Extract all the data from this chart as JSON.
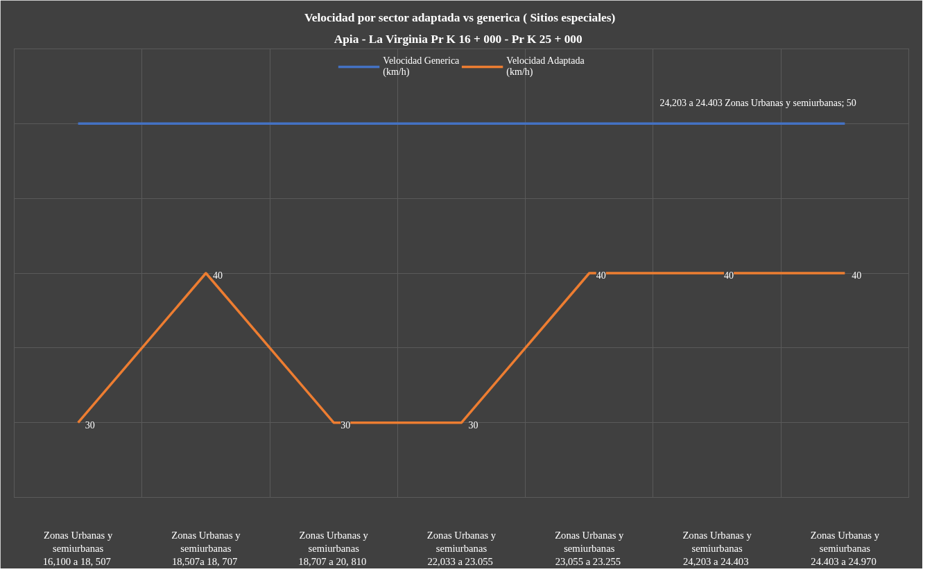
{
  "chart_data": {
    "type": "line",
    "title": "Velocidad por sector adaptada  vs generica ( Sitios especiales)",
    "subtitle": "Apia - La Virginia   Pr K 16 + 000 - Pr K 25 + 000",
    "categories": [
      "Zonas Urbanas y\nsemiurbanas\n16,100 a  18, 507",
      "Zonas Urbanas y\nsemiurbanas\n18,507a  18, 707",
      "Zonas Urbanas y\nsemiurbanas\n18,707 a  20, 810",
      "Zonas Urbanas y\nsemiurbanas\n22,033 a  23.055",
      "Zonas Urbanas y\nsemiurbanas\n23,055 a  23.255",
      "Zonas Urbanas y\nsemiurbanas\n24,203 a  24.403",
      "Zonas Urbanas y\nsemiurbanas\n24.403 a  24.970"
    ],
    "series": [
      {
        "name": "Velocidad Generica\n(km/h)",
        "color": "#4472c4",
        "values": [
          50,
          50,
          50,
          50,
          50,
          50,
          50
        ]
      },
      {
        "name": "Velocidad Adaptada\n(km/h)",
        "color": "#ed7d31",
        "values": [
          30,
          40,
          30,
          30,
          40,
          40,
          40
        ],
        "value_labels": [
          "30",
          "40",
          "30",
          "30",
          "40",
          "40",
          "40"
        ]
      }
    ],
    "annotations": [
      {
        "text": "24,203 a  24.403 Zonas Urbanas y semiurbanas; 50",
        "y": 50
      }
    ],
    "ylim": [
      25,
      55
    ],
    "yticks": [
      {
        "value": 25,
        "label": null
      },
      {
        "value": 30,
        "label": null
      },
      {
        "value": 35,
        "label": null
      },
      {
        "value": 40,
        "label": null
      },
      {
        "value": 45,
        "label": null
      },
      {
        "value": 50,
        "label": null
      },
      {
        "value": 55,
        "label": null
      }
    ],
    "grid": true,
    "legend": "top",
    "marker": "none",
    "line_style": "solid"
  }
}
